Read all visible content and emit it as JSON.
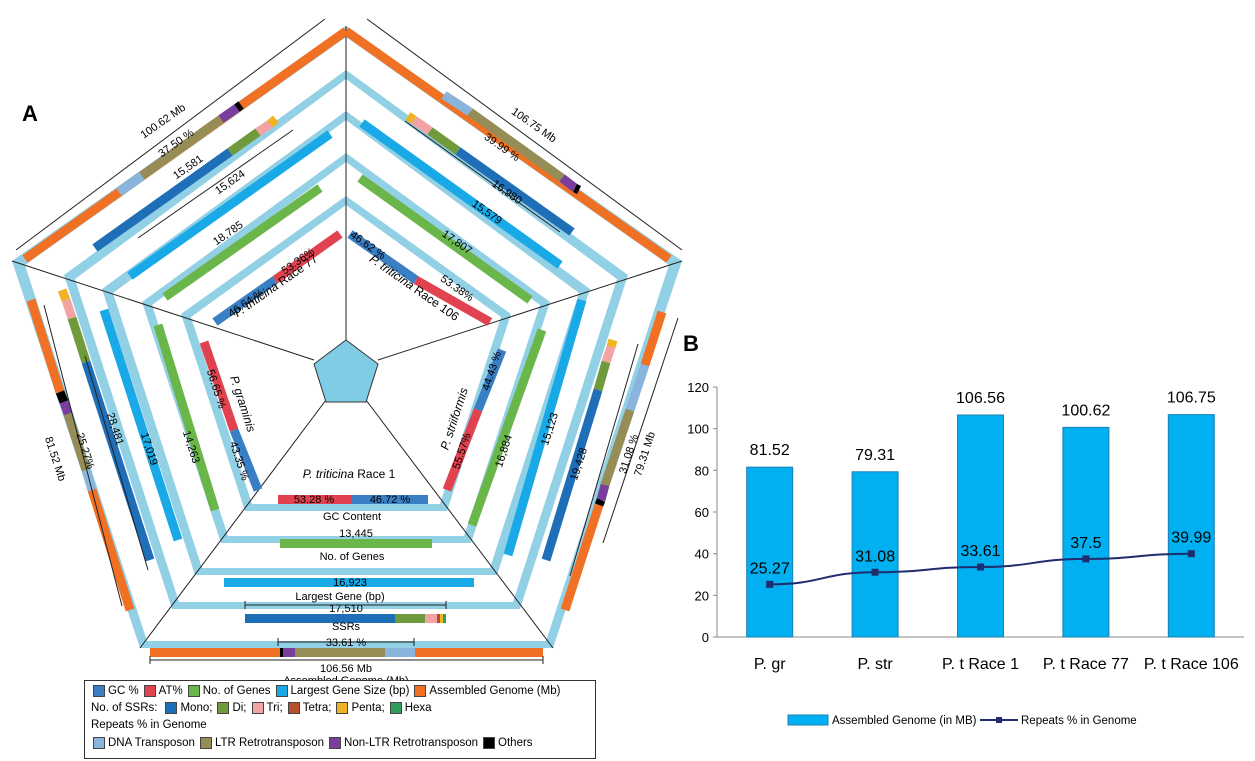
{
  "panel_a": {
    "letter": "A",
    "center_labels": {
      "race1": {
        "italic": "P. triticina",
        "rest": " Race 1"
      },
      "race77": {
        "italic": "P. triticina",
        "rest": " Race 77"
      },
      "race106": {
        "italic": "P. triticina",
        "rest": " Race 106"
      },
      "graminis": "P. graminis",
      "striiformis": "P. striiformis"
    },
    "bottom_titles": {
      "gc": "GC Content",
      "genes": "No. of Genes",
      "largest": "Largest Gene (bp)",
      "ssrs": "SSRs",
      "genome": "Assembled Genome (Mb)"
    },
    "race1": {
      "gc": "53.28 %",
      "at": "46.72 %",
      "genes": "13,445",
      "largest": "16,923",
      "ssrs": "17,510",
      "repeats": "33.61 %",
      "genome": "106.56 Mb"
    },
    "race77": {
      "gc": "46.64 %",
      "at": "53.36%",
      "genes": "18,785",
      "largest": "15,624",
      "ssrs": "15,581",
      "repeats": "37.50 %",
      "genome": "100.62 Mb"
    },
    "race106": {
      "gc": "46.62 %",
      "at": "53.38%",
      "genes": "17,807",
      "largest": "15,579",
      "ssrs": "16,980",
      "repeats": "39.99 %",
      "genome": "106.75 Mb"
    },
    "striiformis": {
      "gc": "44.43 %",
      "at": "55.57%",
      "genes": "16,884",
      "largest": "15,123",
      "ssrs": "19,428",
      "repeats": "31.08 %",
      "genome": "79.31 Mb"
    },
    "graminis": {
      "gc": "43.35 %",
      "at": "56.65 %",
      "genes": "14,263",
      "largest": "17,019",
      "ssrs": "28,481",
      "repeats": "25.27%",
      "genome": "81.52 Mb"
    }
  },
  "legend_a": {
    "row1": [
      "GC %",
      "AT%",
      "No. of Genes",
      "Largest Gene Size (bp)",
      "Assembled Genome (Mb)"
    ],
    "row2_title": "No. of SSRs:",
    "row2": [
      "Mono;",
      "Di;",
      "Tri;",
      "Tetra;",
      "Penta;",
      "Hexa"
    ],
    "row3_title": "Repeats % in Genome",
    "row4": [
      "DNA Transposon",
      "LTR Retrotransposon",
      "Non-LTR Retrotransposon",
      "Others"
    ]
  },
  "colors": {
    "gc": "#3a7fc4",
    "at": "#e0434f",
    "genes": "#6ab64a",
    "largest": "#19a9e6",
    "genome": "#f07124",
    "light": "#92d0e6",
    "mono": "#1f6fb8",
    "di": "#6f9b3c",
    "tri": "#f2a3a3",
    "tetra": "#b5502c",
    "penta": "#f0b323",
    "hexa": "#2f9e5b",
    "dna": "#89b4dc",
    "ltr": "#968c56",
    "nonltr": "#7a3f9d",
    "others": "#000000",
    "center": "#7fcde4",
    "bar": "#00b0f0",
    "line": "#1f2d6e"
  },
  "panel_b": {
    "letter": "B"
  },
  "chart_data": {
    "type": "bar",
    "categories": [
      "P. gr",
      "P. str",
      "P. t Race 1",
      "P. t Race 77",
      "P. t Race 106"
    ],
    "series": [
      {
        "name": "Assembled Genome (in MB)",
        "type": "bar",
        "values": [
          81.52,
          79.31,
          106.56,
          100.62,
          106.75
        ],
        "labels": [
          "81.52",
          "79.31",
          "106.56",
          "100.62",
          "106.75"
        ]
      },
      {
        "name": "Repeats % in Genome",
        "type": "line",
        "values": [
          25.27,
          31.08,
          33.61,
          37.5,
          39.99
        ],
        "labels": [
          "25.27",
          "31.08",
          "33.61",
          "37.5",
          "39.99"
        ]
      }
    ],
    "ylim": [
      0,
      120
    ],
    "yticks": [
      0,
      20,
      40,
      60,
      80,
      100,
      120
    ],
    "ylabel": "",
    "xlabel": "",
    "grid": false,
    "legend_position": "bottom"
  }
}
